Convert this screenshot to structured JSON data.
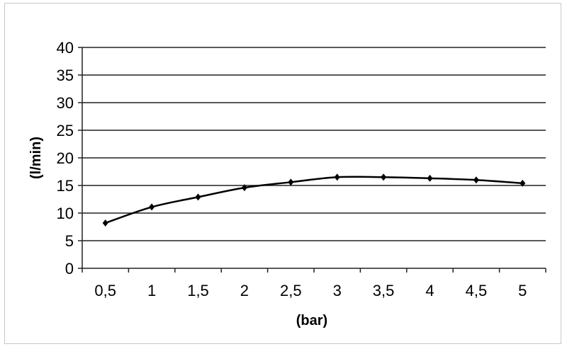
{
  "chart_data": {
    "type": "line",
    "title": "",
    "xlabel": "(bar)",
    "ylabel": "(l/min)",
    "categories": [
      "0,5",
      "1",
      "1,5",
      "2",
      "2,5",
      "3",
      "3,5",
      "4",
      "4,5",
      "5"
    ],
    "series": [
      {
        "values": [
          8.2,
          11.1,
          12.9,
          14.6,
          15.6,
          16.5,
          16.5,
          16.3,
          16.0,
          15.4
        ]
      }
    ],
    "ylim": [
      0,
      40
    ],
    "yticks": [
      0,
      5,
      10,
      15,
      20,
      25,
      30,
      35,
      40
    ],
    "grid": true,
    "legend": "none",
    "colors": {
      "line": "#000000",
      "grid": "#000000"
    }
  }
}
